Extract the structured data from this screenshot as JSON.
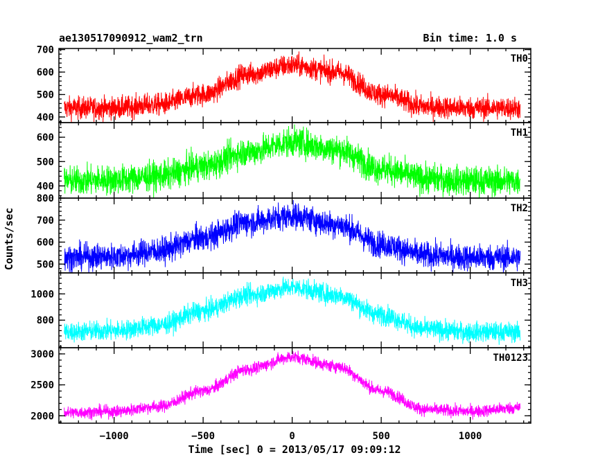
{
  "chart_data": {
    "type": "line",
    "title_left": "ae130517090912_wam2_trn",
    "title_right": "Bin time: 1.0 s",
    "xlabel": "Time [sec] 0 = 2013/05/17 09:09:12",
    "ylabel": "Counts/sec",
    "xlim": [
      -1310,
      1340
    ],
    "x_ticks": [
      -1000,
      -500,
      0,
      500,
      1000
    ],
    "x_tick_labels": [
      "−1000",
      "−500",
      "0",
      "500",
      "1000"
    ],
    "x_range": [
      -1280,
      1280
    ],
    "bin_time_s": 1.0,
    "grid": false,
    "series": [
      {
        "name": "TH0",
        "color": "#ff0000",
        "ylim": [
          375,
          705
        ],
        "y_ticks": [
          400,
          500,
          600,
          700
        ],
        "y_tick_labels": [
          "400",
          "500",
          "600",
          "700"
        ],
        "profile_x": [
          -1280,
          -1000,
          -750,
          -500,
          -250,
          0,
          250,
          500,
          750,
          1000,
          1280
        ],
        "profile_y": [
          440,
          440,
          455,
          500,
          590,
          630,
          600,
          500,
          445,
          440,
          440
        ],
        "noise": 25
      },
      {
        "name": "TH1",
        "color": "#00ff00",
        "ylim": [
          350,
          660
        ],
        "y_ticks": [
          400,
          500,
          600
        ],
        "y_tick_labels": [
          "400",
          "500",
          "600"
        ],
        "profile_x": [
          -1280,
          -1000,
          -750,
          -500,
          -250,
          0,
          250,
          500,
          750,
          1000,
          1280
        ],
        "profile_y": [
          420,
          425,
          440,
          480,
          540,
          580,
          550,
          470,
          430,
          420,
          420
        ],
        "noise": 30
      },
      {
        "name": "TH2",
        "color": "#0000ff",
        "ylim": [
          460,
          800
        ],
        "y_ticks": [
          500,
          600,
          700,
          800
        ],
        "y_tick_labels": [
          "500",
          "600",
          "700",
          "800"
        ],
        "profile_x": [
          -1280,
          -1000,
          -750,
          -500,
          -250,
          0,
          250,
          500,
          750,
          1000,
          1280
        ],
        "profile_y": [
          530,
          535,
          560,
          620,
          690,
          720,
          680,
          590,
          540,
          530,
          530
        ],
        "noise": 30
      },
      {
        "name": "TH3",
        "color": "#00ffff",
        "ylim": [
          590,
          1160
        ],
        "y_ticks": [
          800,
          1000
        ],
        "y_tick_labels": [
          "800",
          "1000"
        ],
        "profile_x": [
          -1280,
          -1000,
          -750,
          -500,
          -250,
          0,
          250,
          500,
          750,
          1000,
          1280
        ],
        "profile_y": [
          710,
          720,
          760,
          870,
          990,
          1050,
          990,
          840,
          730,
          710,
          710
        ],
        "noise": 38
      },
      {
        "name": "TH0123",
        "color": "#ff00ff",
        "ylim": [
          1880,
          3100
        ],
        "y_ticks": [
          2000,
          2500,
          3000
        ],
        "y_tick_labels": [
          "2000",
          "2500",
          "3000"
        ],
        "profile_x": [
          -1280,
          -1000,
          -750,
          -500,
          -250,
          0,
          250,
          500,
          750,
          1000,
          1280
        ],
        "profile_y": [
          2050,
          2070,
          2150,
          2400,
          2750,
          2950,
          2800,
          2400,
          2100,
          2070,
          2130
        ],
        "noise": 50
      }
    ]
  }
}
